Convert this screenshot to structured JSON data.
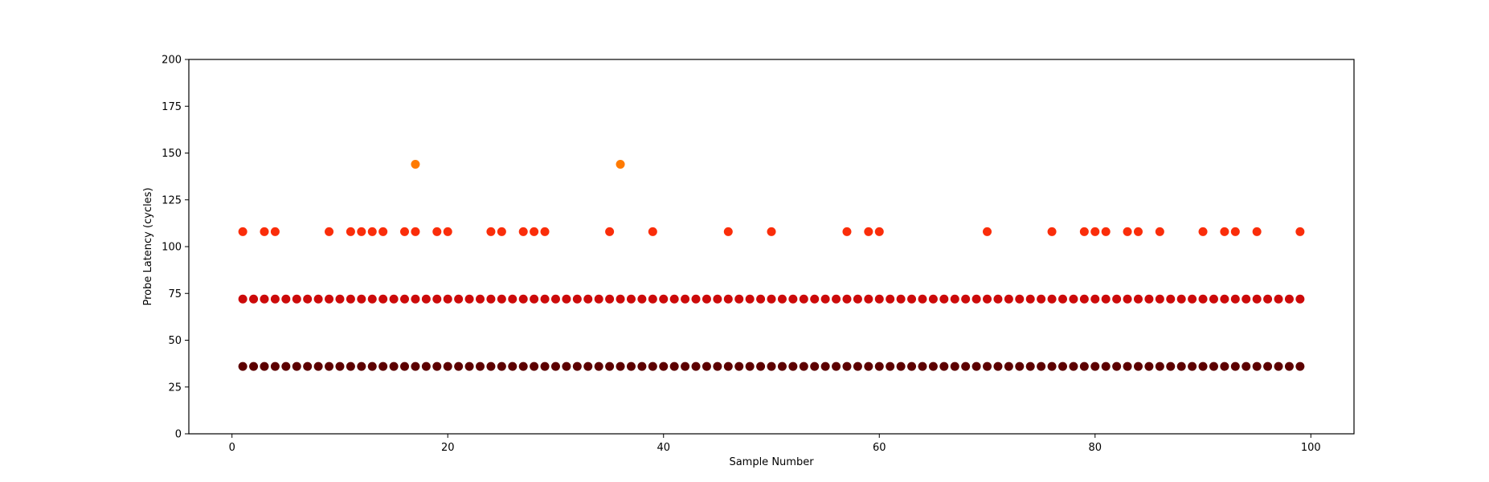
{
  "chart_data": {
    "type": "scatter",
    "title": "",
    "xlabel": "Sample Number",
    "ylabel": "Probe Latency (cycles)",
    "xlim": [
      -4,
      104
    ],
    "ylim": [
      0,
      200
    ],
    "x_ticks": [
      0,
      20,
      40,
      60,
      80,
      100
    ],
    "y_ticks": [
      0,
      25,
      50,
      75,
      100,
      125,
      150,
      175,
      200
    ],
    "grid": false,
    "legend": "none",
    "x_range_all_levels": [
      1,
      99
    ],
    "levels": [
      {
        "y": 36,
        "color": "#5c0000"
      },
      {
        "y": 72,
        "color": "#cc0a0a"
      },
      {
        "y": 108,
        "color": "#fa2d0a"
      },
      {
        "y": 144,
        "color": "#ff7a00"
      }
    ],
    "points": [
      {
        "x": 1,
        "y": 108
      },
      {
        "x": 3,
        "y": 108
      },
      {
        "x": 4,
        "y": 108
      },
      {
        "x": 9,
        "y": 108
      },
      {
        "x": 11,
        "y": 108
      },
      {
        "x": 12,
        "y": 108
      },
      {
        "x": 13,
        "y": 108
      },
      {
        "x": 14,
        "y": 108
      },
      {
        "x": 16,
        "y": 108
      },
      {
        "x": 17,
        "y": 108
      },
      {
        "x": 19,
        "y": 108
      },
      {
        "x": 20,
        "y": 108
      },
      {
        "x": 24,
        "y": 108
      },
      {
        "x": 25,
        "y": 108
      },
      {
        "x": 27,
        "y": 108
      },
      {
        "x": 28,
        "y": 108
      },
      {
        "x": 29,
        "y": 108
      },
      {
        "x": 35,
        "y": 108
      },
      {
        "x": 39,
        "y": 108
      },
      {
        "x": 46,
        "y": 108
      },
      {
        "x": 50,
        "y": 108
      },
      {
        "x": 57,
        "y": 108
      },
      {
        "x": 59,
        "y": 108
      },
      {
        "x": 60,
        "y": 108
      },
      {
        "x": 70,
        "y": 108
      },
      {
        "x": 76,
        "y": 108
      },
      {
        "x": 79,
        "y": 108
      },
      {
        "x": 80,
        "y": 108
      },
      {
        "x": 81,
        "y": 108
      },
      {
        "x": 83,
        "y": 108
      },
      {
        "x": 84,
        "y": 108
      },
      {
        "x": 86,
        "y": 108
      },
      {
        "x": 90,
        "y": 108
      },
      {
        "x": 92,
        "y": 108
      },
      {
        "x": 93,
        "y": 108
      },
      {
        "x": 95,
        "y": 108
      },
      {
        "x": 99,
        "y": 108
      },
      {
        "x": 17,
        "y": 144
      },
      {
        "x": 36,
        "y": 144
      }
    ]
  }
}
